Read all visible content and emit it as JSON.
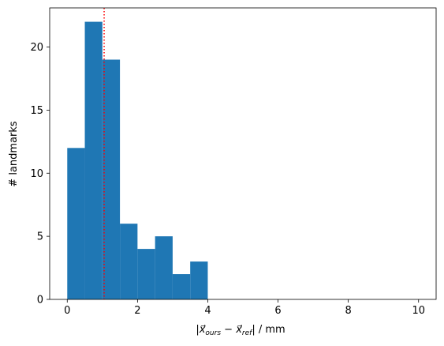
{
  "chart_data": {
    "type": "bar",
    "subtype": "histogram",
    "bin_edges": [
      0,
      0.5,
      1.0,
      1.5,
      2.0,
      2.5,
      3.0,
      3.5,
      4.0
    ],
    "values": [
      12,
      22,
      19,
      6,
      4,
      5,
      2,
      3
    ],
    "bar_color": "#1f77b4",
    "reference_line": {
      "x": 1.05,
      "color": "#ff0000",
      "style": "dotted"
    },
    "xlabel": "|x⃗ours − x⃗ref| / mm",
    "xlabel_parts": {
      "open": "|",
      "a": "x⃗",
      "a_sub": "ours",
      "minus": " − ",
      "b": "x⃗",
      "b_sub": "ref",
      "close": "| / mm"
    },
    "ylabel": "# landmarks",
    "xlim": [
      -0.5,
      10.5
    ],
    "ylim": [
      0,
      23.1
    ],
    "xticks": [
      0,
      2,
      4,
      6,
      8,
      10
    ],
    "xtick_labels": [
      "0",
      "2",
      "4",
      "6",
      "8",
      "10"
    ],
    "yticks": [
      0,
      5,
      10,
      15,
      20
    ],
    "ytick_labels": [
      "0",
      "5",
      "10",
      "15",
      "20"
    ],
    "grid": false,
    "legend": "none"
  }
}
